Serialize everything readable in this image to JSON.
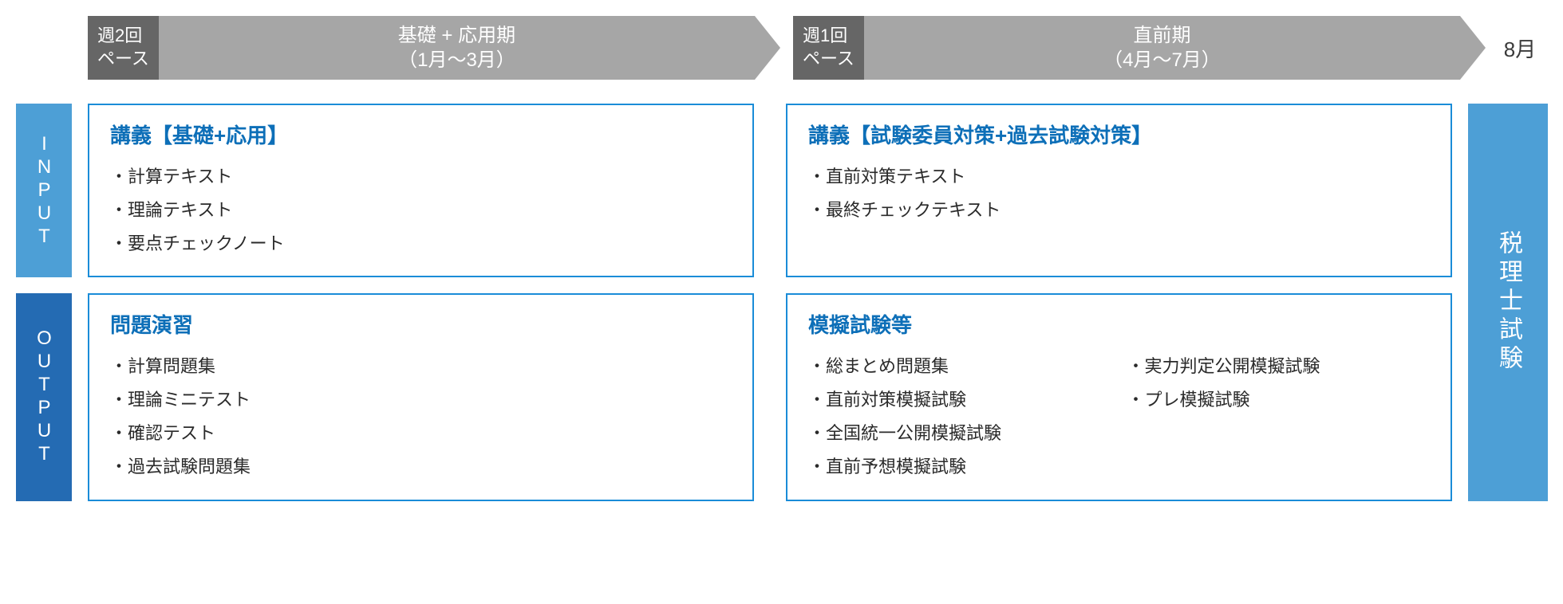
{
  "colors": {
    "phase_bar": "#a6a6a6",
    "pace_box": "#666666",
    "box_border": "#1a8cd8",
    "title_text": "#0d6fb8",
    "input_label_bg": "#4d9fd6",
    "output_label_bg": "#246bb3",
    "exam_bg": "#4d9fd6",
    "body_text": "#2a2a2a",
    "month_text": "#3a3a3a",
    "white": "#ffffff"
  },
  "timeline": {
    "phase1": {
      "pace_line1": "週2回",
      "pace_line2": "ペース",
      "title": "基礎 + 応用期",
      "range": "（1月～3月）"
    },
    "phase2": {
      "pace_line1": "週1回",
      "pace_line2": "ペース",
      "title": "直前期",
      "range": "（4月～7月）"
    },
    "final_month": "8月"
  },
  "side_labels": {
    "input": "INPUT",
    "output": "OUTPUT"
  },
  "boxes": {
    "input_phase1": {
      "title": "講義【基礎+応用】",
      "items": [
        "・計算テキスト",
        "・理論テキスト",
        "・要点チェックノート"
      ]
    },
    "input_phase2": {
      "title": "講義【試験委員対策+過去試験対策】",
      "items": [
        "・直前対策テキスト",
        "・最終チェックテキスト"
      ]
    },
    "output_phase1": {
      "title": "問題演習",
      "items": [
        "・計算問題集",
        "・理論ミニテスト",
        "・確認テスト",
        "・過去試験問題集"
      ]
    },
    "output_phase2": {
      "title": "模擬試験等",
      "items_col1": [
        "・総まとめ問題集",
        "・直前対策模擬試験",
        "・全国統一公開模擬試験",
        "・直前予想模擬試験"
      ],
      "items_col2": [
        "・実力判定公開模擬試験",
        "・プレ模擬試験"
      ]
    }
  },
  "exam_label": "税理士試験"
}
